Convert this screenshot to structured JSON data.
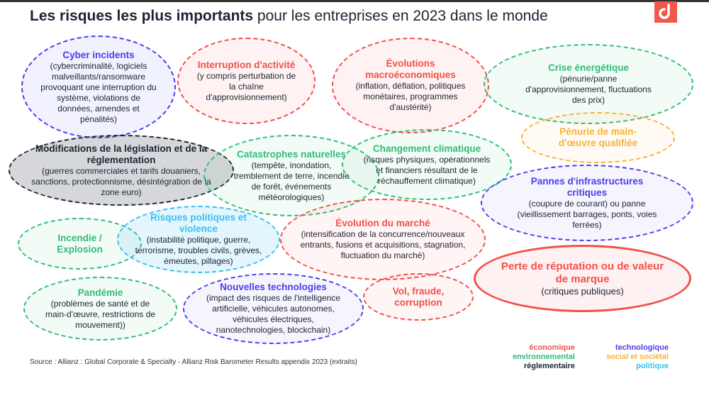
{
  "title": {
    "bold": "Les risques les plus importants",
    "rest": " pour les entreprises en 2023 dans le monde"
  },
  "logo": {
    "icon": "brand-logo-icon",
    "color": "#f2574b"
  },
  "colors": {
    "economique": "#f2504b",
    "environnemental": "#2ebd7a",
    "reglementaire": "#1c2333",
    "technologique": "#4a3df0",
    "social": "#f9b233",
    "politique": "#3bbfef"
  },
  "risks": [
    {
      "name": "Cyber incidents",
      "desc": "(cybercriminalité, logiciels malveillants/ransomware provoquant une interruption du système, violations de données, amendes et pénalités)",
      "category": "technologique"
    },
    {
      "name": "Interruption d'activité",
      "desc": "(y compris perturbation de la chaîne d'approvisionnement)",
      "category": "economique"
    },
    {
      "name": "Évolutions macroéconomiques",
      "desc": "(inflation, déflation, politiques monétaires, programmes d'austérité)",
      "category": "economique"
    },
    {
      "name": "Crise énergétique",
      "desc": "(pénurie/panne d'approvisionnement, fluctuations des prix)",
      "category": "environnemental"
    },
    {
      "name": "Pénurie de main-d'œuvre qualifiée",
      "desc": "",
      "category": "social"
    },
    {
      "name": "Modifications de la législation et de la réglementation",
      "desc": "(guerres commerciales et tarifs douaniers, sanctions, protectionnisme, désintégration de la zone euro)",
      "category": "reglementaire"
    },
    {
      "name": "Catastrophes naturelles",
      "desc": "(tempête, inondation, tremblement de terre, incendie de forêt, événements météorologiques)",
      "category": "environnemental"
    },
    {
      "name": "Changement climatique",
      "desc": "(risques physiques, opérationnels et financiers résultant de le réchauffement climatique)",
      "category": "environnemental"
    },
    {
      "name": "Pannes d'infrastructures critiques",
      "desc": "(coupure de courant) ou panne (vieillissement barrages, ponts, voies ferrées)",
      "category": "technologique"
    },
    {
      "name": "Incendie / Explosion",
      "desc": "",
      "category": "environnemental"
    },
    {
      "name": "Risques politiques et violence",
      "desc": "(instabilité politique, guerre, terrorisme, troubles civils, grèves, émeutes, pillages)",
      "category": "politique"
    },
    {
      "name": "Évolution du marché",
      "desc": "(intensification de la concurrence/nouveaux entrants, fusions et acquisitions, stagnation, fluctuation du marché)",
      "category": "economique"
    },
    {
      "name": "Perte de réputation ou de valeur de marque",
      "desc": "(critiques publiques)",
      "category": "economique"
    },
    {
      "name": "Pandémie",
      "desc": "(problèmes de santé et de main-d'œuvre, restrictions de mouvement))",
      "category": "environnemental"
    },
    {
      "name": "Nouvelles technologies",
      "desc": "(impact des risques de l'intelligence artificielle, véhicules autonomes, véhicules électriques, nanotechnologies, blockchain)",
      "category": "technologique"
    },
    {
      "name": "Vol, fraude, corruption",
      "desc": "",
      "category": "economique"
    }
  ],
  "source": "Source : Allianz : Global Corporate & Specialty - Allianz Risk Barometer Results appendix 2023 (extraits)",
  "legend": {
    "left": [
      {
        "label": "économique",
        "category": "economique"
      },
      {
        "label": "environnemental",
        "category": "environnemental"
      },
      {
        "label": "réglementaire",
        "category": "reglementaire"
      }
    ],
    "right": [
      {
        "label": "technologique",
        "category": "technologique"
      },
      {
        "label": "social et sociétal",
        "category": "social"
      },
      {
        "label": "politique",
        "category": "politique"
      }
    ]
  }
}
